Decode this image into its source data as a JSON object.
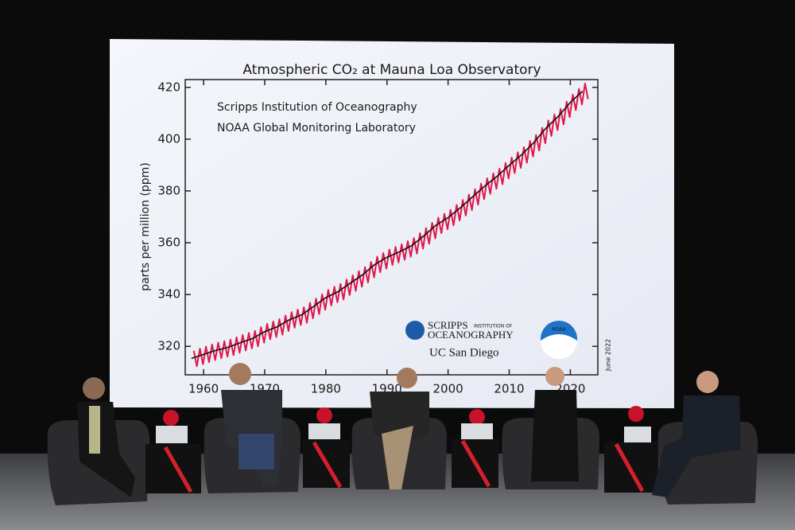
{
  "chart_data": {
    "type": "line",
    "title": "Atmospheric CO₂ at Mauna Loa Observatory",
    "y_label": "parts per million (ppm)",
    "annotations": [
      "Scripps Institution of Oceanography",
      "NOAA Global Monitoring Laboratory",
      "June 2022"
    ],
    "logos": [
      "SCRIPPS",
      "INSTITUTION OF",
      "OCEANOGRAPHY",
      "UC San Diego",
      "NOAA"
    ],
    "xlim": [
      1957,
      2024.5
    ],
    "ylim": [
      309,
      423
    ],
    "xticks": [
      1960,
      1970,
      1980,
      1990,
      2000,
      2010,
      2020
    ],
    "yticks": [
      320,
      340,
      360,
      380,
      400,
      420
    ],
    "series": [
      {
        "color": "#e0174b",
        "x": [
          1958.4,
          1958.9,
          1959.4,
          1959.9,
          1960.4,
          1960.9,
          1961.4,
          1961.9,
          1962.4,
          1962.9,
          1963.4,
          1963.9,
          1964.4,
          1964.9,
          1965.4,
          1965.9,
          1966.4,
          1966.9,
          1967.4,
          1967.9,
          1968.4,
          1968.9,
          1969.4,
          1969.9,
          1970.4,
          1970.9,
          1971.4,
          1971.9,
          1972.4,
          1972.9,
          1973.4,
          1973.9,
          1974.4,
          1974.9,
          1975.4,
          1975.9,
          1976.4,
          1976.9,
          1977.4,
          1977.9,
          1978.4,
          1978.9,
          1979.4,
          1979.9,
          1980.4,
          1980.9,
          1981.4,
          1981.9,
          1982.4,
          1982.9,
          1983.4,
          1983.9,
          1984.4,
          1984.9,
          1985.4,
          1985.9,
          1986.4,
          1986.9,
          1987.4,
          1987.9,
          1988.4,
          1988.9,
          1989.4,
          1989.9,
          1990.4,
          1990.9,
          1991.4,
          1991.9,
          1992.4,
          1992.9,
          1993.4,
          1993.9,
          1994.4,
          1994.9,
          1995.4,
          1995.9,
          1996.4,
          1996.9,
          1997.4,
          1997.9,
          1998.4,
          1998.9,
          1999.4,
          1999.9,
          2000.4,
          2000.9,
          2001.4,
          2001.9,
          2002.4,
          2002.9,
          2003.4,
          2003.9,
          2004.4,
          2004.9,
          2005.4,
          2005.9,
          2006.4,
          2006.9,
          2007.4,
          2007.9,
          2008.4,
          2008.9,
          2009.4,
          2009.9,
          2010.4,
          2010.9,
          2011.4,
          2011.9,
          2012.4,
          2012.9,
          2013.4,
          2013.9,
          2014.4,
          2014.9,
          2015.4,
          2015.9,
          2016.4,
          2016.9,
          2017.4,
          2017.9,
          2018.4,
          2018.9,
          2019.4,
          2019.9,
          2020.4,
          2020.9,
          2021.4,
          2021.9,
          2022.4,
          2022.9
        ],
        "values": [
          318.3,
          312.3,
          319.1,
          313.1,
          319.9,
          313.9,
          320.7,
          314.7,
          321.4,
          315.4,
          322.0,
          316.0,
          322.6,
          316.6,
          323.5,
          317.5,
          324.4,
          318.4,
          325.2,
          319.2,
          326.0,
          320.0,
          327.4,
          321.4,
          328.7,
          322.7,
          329.6,
          323.6,
          330.5,
          324.5,
          331.9,
          325.9,
          333.2,
          327.2,
          334.2,
          328.2,
          335.1,
          329.1,
          336.8,
          330.8,
          338.4,
          332.4,
          340.1,
          334.1,
          341.8,
          335.8,
          343.0,
          337.0,
          344.1,
          338.1,
          345.8,
          339.8,
          347.4,
          341.4,
          349.0,
          343.0,
          350.6,
          344.6,
          352.6,
          346.6,
          354.6,
          348.6,
          356.0,
          350.0,
          357.4,
          351.4,
          358.4,
          352.4,
          359.4,
          353.4,
          360.6,
          354.6,
          361.8,
          355.8,
          363.7,
          357.7,
          365.6,
          359.6,
          367.7,
          361.7,
          369.7,
          363.7,
          371.2,
          365.2,
          372.7,
          366.7,
          374.6,
          368.6,
          376.5,
          370.5,
          378.6,
          372.6,
          380.7,
          374.7,
          382.8,
          376.8,
          384.9,
          378.9,
          386.8,
          380.8,
          388.6,
          382.6,
          390.8,
          384.8,
          392.9,
          386.9,
          394.9,
          388.9,
          396.9,
          390.9,
          399.3,
          393.3,
          401.6,
          395.6,
          404.4,
          398.4,
          407.2,
          401.2,
          409.5,
          403.5,
          411.7,
          405.7,
          414.5,
          408.5,
          417.2,
          411.2,
          419.4,
          413.4,
          421.5,
          415.5
        ]
      },
      {
        "color": "#111111",
        "x": [
          1958,
          1960,
          1962,
          1964,
          1966,
          1968,
          1970,
          1972,
          1974,
          1976,
          1978,
          1980,
          1982,
          1984,
          1986,
          1988,
          1990,
          1992,
          1994,
          1996,
          1998,
          2000,
          2002,
          2004,
          2006,
          2008,
          2010,
          2012,
          2014,
          2016,
          2018,
          2020,
          2022
        ],
        "values": [
          315.3,
          316.9,
          318.4,
          319.6,
          321.4,
          323.0,
          325.7,
          327.5,
          330.2,
          332.1,
          335.4,
          338.8,
          341.1,
          344.4,
          347.6,
          351.6,
          354.4,
          356.4,
          358.8,
          362.6,
          366.7,
          369.7,
          373.5,
          377.7,
          381.9,
          385.6,
          389.9,
          393.9,
          398.6,
          404.2,
          408.7,
          414.2,
          418.5
        ]
      }
    ]
  }
}
